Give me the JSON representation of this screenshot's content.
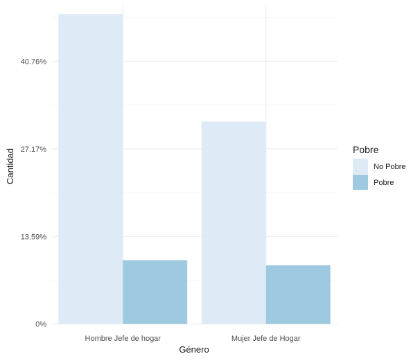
{
  "chart_data": {
    "type": "bar",
    "layout": "grouped",
    "xlabel": "Género",
    "ylabel": "Cantidad",
    "categories": [
      "Hombre Jefe de hogar",
      "Mujer Jefe de Hogar"
    ],
    "series": [
      {
        "name": "No Pobre",
        "color": "#deebf7",
        "values": [
          48.1,
          31.4
        ]
      },
      {
        "name": "Pobre",
        "color": "#9ecae1",
        "values": [
          9.9,
          9.1
        ]
      }
    ],
    "yticks": [
      0,
      13.59,
      27.17,
      40.76
    ],
    "ytick_labels": [
      "0%",
      "13.59%",
      "27.17%",
      "40.76%"
    ],
    "ylim": [
      -0.03,
      49.4
    ],
    "legend": {
      "title": "Pobre",
      "position": "right",
      "entries": [
        "No Pobre",
        "Pobre"
      ]
    },
    "grid": true
  }
}
